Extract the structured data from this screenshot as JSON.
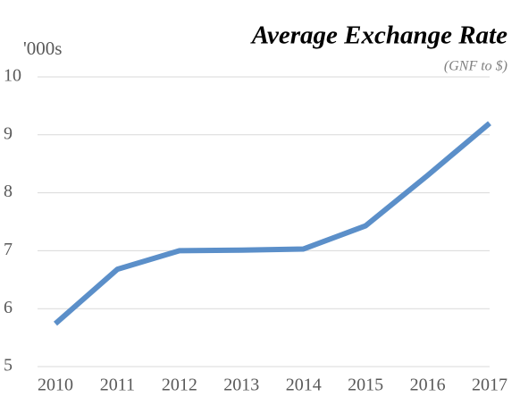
{
  "chart_data": {
    "type": "line",
    "title": "Average Exchange Rate",
    "subtitle": "(GNF to $)",
    "y_label": "'000s",
    "categories": [
      "2010",
      "2011",
      "2012",
      "2013",
      "2014",
      "2015",
      "2016",
      "2017"
    ],
    "series": [
      {
        "name": "Average Exchange Rate",
        "color": "#5b8fc9",
        "values": [
          5.74,
          6.68,
          7.0,
          7.01,
          7.03,
          7.43,
          8.3,
          9.2
        ]
      }
    ],
    "ylim": [
      5,
      10
    ],
    "yticks": [
      5,
      6,
      7,
      8,
      9,
      10
    ],
    "grid": true
  }
}
